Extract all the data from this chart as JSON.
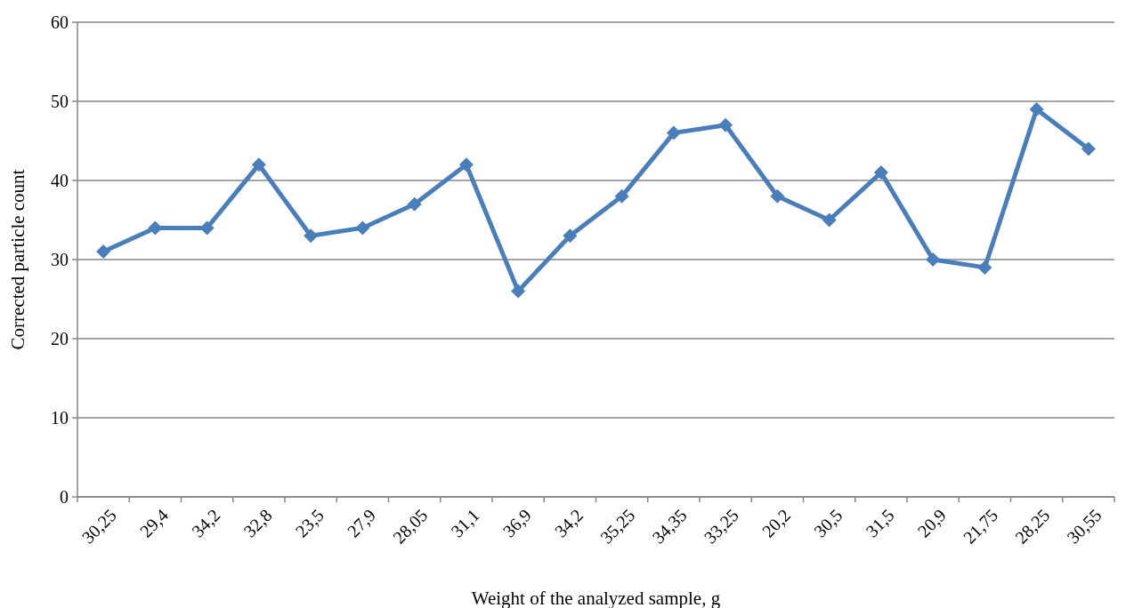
{
  "chart_data": {
    "type": "line",
    "xlabel": "Weight of the analyzed sample, g",
    "ylabel": "Corrected particle count",
    "categories": [
      "30,25",
      "29,4",
      "34,2",
      "32,8",
      "23,5",
      "27,9",
      "28,05",
      "31,1",
      "36,9",
      "34,2",
      "35,25",
      "34,35",
      "33,25",
      "20,2",
      "30,5",
      "31,5",
      "20,9",
      "21,75",
      "28,25",
      "30,55"
    ],
    "series": [
      {
        "color": "#4a7ebb",
        "values": [
          31,
          34,
          34,
          42,
          33,
          34,
          37,
          42,
          26,
          33,
          38,
          46,
          47,
          38,
          35,
          41,
          30,
          29,
          49,
          44
        ]
      }
    ],
    "ylim": [
      0,
      60
    ],
    "yticks": [
      0,
      10,
      20,
      30,
      40,
      50,
      60
    ],
    "grid": "y",
    "marker": "diamond",
    "line_style": "solid"
  }
}
